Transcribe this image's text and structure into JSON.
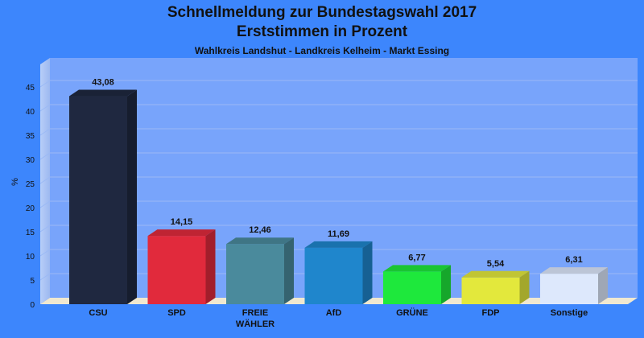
{
  "title_line1": "Schnellmeldung zur Bundestagswahl 2017",
  "title_line2": "Erststimmen in Prozent",
  "subtitle": "Wahlkreis Landshut - Landkreis Kelheim - Markt Essing",
  "chart_data": {
    "type": "bar",
    "title": "Schnellmeldung zur Bundestagswahl 2017 — Erststimmen in Prozent",
    "subtitle": "Wahlkreis Landshut - Landkreis Kelheim - Markt Essing",
    "xlabel": "",
    "ylabel": "%",
    "ylim": [
      0,
      48
    ],
    "yticks": [
      0,
      5,
      10,
      15,
      20,
      25,
      30,
      35,
      40,
      45
    ],
    "grid": true,
    "categories": [
      "CSU",
      "SPD",
      "FREIE WÄHLER",
      "AfD",
      "GRÜNE",
      "FDP",
      "Sonstige"
    ],
    "category_lines": [
      [
        "CSU"
      ],
      [
        "SPD"
      ],
      [
        "FREIE",
        "WÄHLER"
      ],
      [
        "AfD"
      ],
      [
        "GRÜNE"
      ],
      [
        "FDP"
      ],
      [
        "Sonstige"
      ]
    ],
    "values": [
      43.08,
      14.15,
      12.46,
      11.69,
      6.77,
      5.54,
      6.31
    ],
    "value_labels": [
      "43,08",
      "14,15",
      "12,46",
      "11,69",
      "6,77",
      "5,54",
      "6,31"
    ],
    "colors": [
      "#1f2840",
      "#e12a3c",
      "#4a8a9c",
      "#1f86cc",
      "#1ee83c",
      "#e3e83c",
      "#dde8fc"
    ]
  }
}
